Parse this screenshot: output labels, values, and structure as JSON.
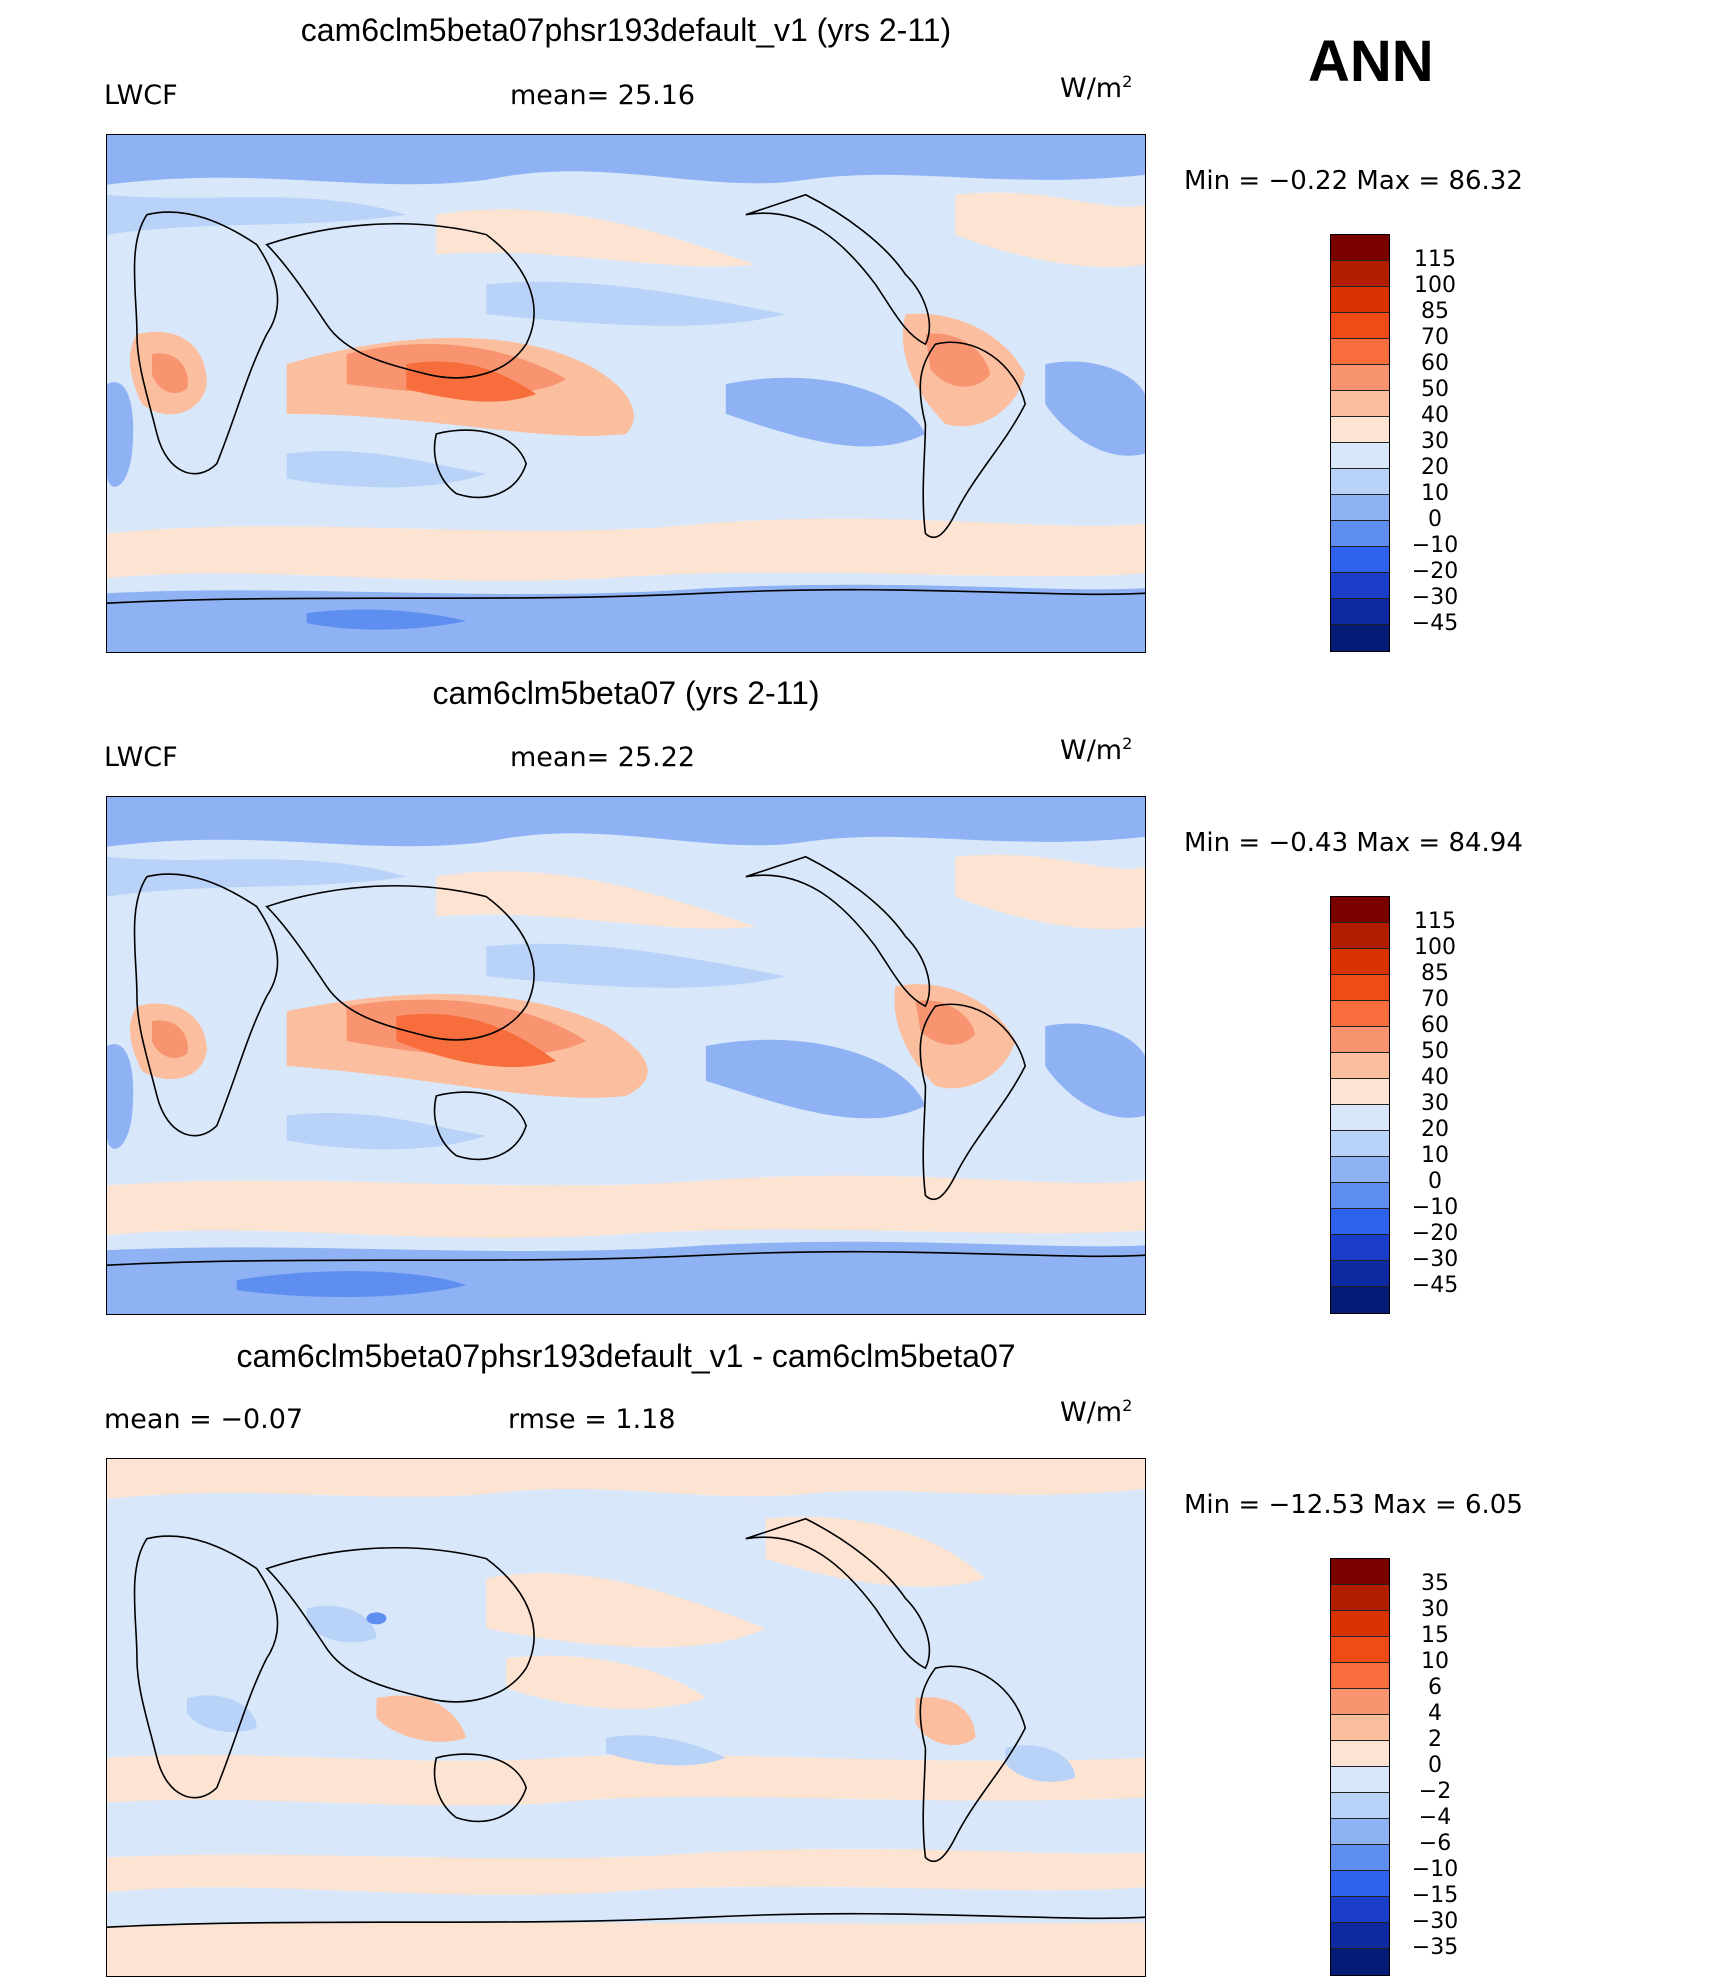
{
  "season": "ANN",
  "panels": [
    {
      "title": "cam6clm5beta07phsr193default_v1 (yrs 2-11)",
      "left_label": "LWCF",
      "center_label": "mean=   25.16",
      "units": "W/m",
      "units_sup": "2",
      "minmax": "Min  =     −0.22  Max  =     86.32",
      "levels": [
        "115",
        "100",
        "85",
        "70",
        "60",
        "50",
        "40",
        "30",
        "20",
        "10",
        "0",
        "−10",
        "−20",
        "−30",
        "−45"
      ],
      "colors": [
        "#7a0000",
        "#b21d00",
        "#d83200",
        "#ef4b16",
        "#f76d3c",
        "#f89470",
        "#fbbfa0",
        "#fde4d2",
        "#d8e8fa",
        "#b8d2f8",
        "#8fb2f4",
        "#5e8ef0",
        "#2f62ec",
        "#1b3ec8",
        "#0d2aa0",
        "#061a78"
      ]
    },
    {
      "title": "cam6clm5beta07 (yrs 2-11)",
      "left_label": "LWCF",
      "center_label": "mean=   25.22",
      "units": "W/m",
      "units_sup": "2",
      "minmax": "Min  =     −0.43  Max  =     84.94",
      "levels": [
        "115",
        "100",
        "85",
        "70",
        "60",
        "50",
        "40",
        "30",
        "20",
        "10",
        "0",
        "−10",
        "−20",
        "−30",
        "−45"
      ],
      "colors": [
        "#7a0000",
        "#b21d00",
        "#d83200",
        "#ef4b16",
        "#f76d3c",
        "#f89470",
        "#fbbfa0",
        "#fde4d2",
        "#d8e8fa",
        "#b8d2f8",
        "#8fb2f4",
        "#5e8ef0",
        "#2f62ec",
        "#1b3ec8",
        "#0d2aa0",
        "#061a78"
      ]
    },
    {
      "title": "cam6clm5beta07phsr193default_v1 - cam6clm5beta07",
      "left_label": "mean  =     −0.07",
      "center_label": "rmse  =     1.18",
      "units": "W/m",
      "units_sup": "2",
      "minmax": "Min  =  −12.53  Max  =      6.05",
      "levels": [
        "35",
        "30",
        "15",
        "10",
        "6",
        "4",
        "2",
        "0",
        "−2",
        "−4",
        "−6",
        "−10",
        "−15",
        "−30",
        "−35"
      ],
      "colors": [
        "#7a0000",
        "#b21d00",
        "#d83200",
        "#ef4b16",
        "#f76d3c",
        "#f89470",
        "#fbbfa0",
        "#fde4d2",
        "#d8e8fa",
        "#b8d2f8",
        "#8fb2f4",
        "#5e8ef0",
        "#2f62ec",
        "#1b3ec8",
        "#0d2aa0",
        "#061a78"
      ]
    }
  ]
}
